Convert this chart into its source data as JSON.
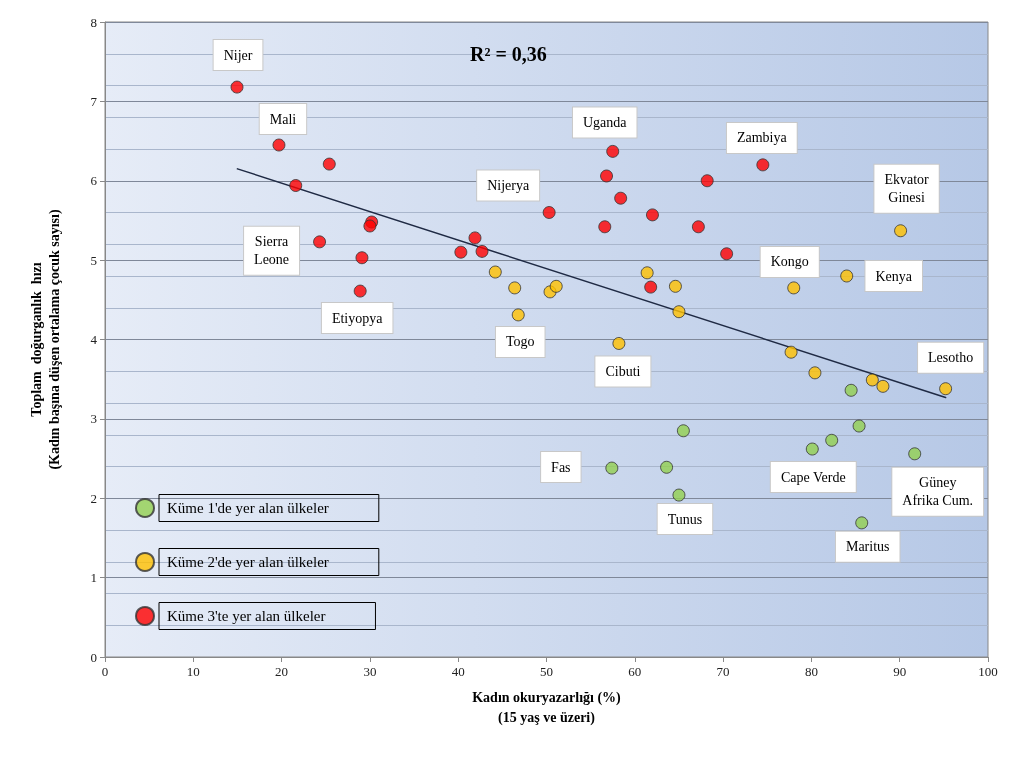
{
  "chart_data": {
    "type": "scatter",
    "xlabel": "Kadın okuryazarlığı (%)\n(15 yaş ve üzeri)",
    "ylabel": "Toplam  doğurganlık  hızı\n(Kadın başına düşen ortalama çocuk sayısı)",
    "xlim": [
      0,
      100
    ],
    "xticks": [
      0,
      10,
      20,
      30,
      40,
      50,
      60,
      70,
      80,
      90,
      100
    ],
    "ylim": [
      0,
      8
    ],
    "yticks": [
      0,
      1,
      2,
      3,
      4,
      5,
      6,
      7,
      8
    ],
    "grid": "y",
    "legend": "bottom left",
    "marker": "circle",
    "series": [
      {
        "name": "Küme 1'de yer alan ülkeler",
        "color": "#92d050",
        "x": [
          65.5,
          57.4,
          63.6,
          65.0,
          84.5,
          85.4,
          82.3,
          80.1,
          91.7,
          85.7
        ],
        "values": [
          2.85,
          2.38,
          2.39,
          2.04,
          3.36,
          2.91,
          2.73,
          2.62,
          2.56,
          1.69
        ]
      },
      {
        "name": "Küme 2'de yer alan ülkeler",
        "color": "#ffc000",
        "x": [
          44.2,
          46.4,
          46.8,
          50.4,
          51.1,
          61.4,
          64.6,
          65.0,
          58.2,
          90.1,
          84.0,
          78.0,
          77.7,
          80.4,
          86.9,
          88.1,
          95.2
        ],
        "values": [
          4.85,
          4.65,
          4.31,
          4.6,
          4.67,
          4.84,
          4.67,
          4.35,
          3.95,
          5.37,
          4.8,
          4.65,
          3.84,
          3.58,
          3.49,
          3.41,
          3.38
        ]
      },
      {
        "name": "Küme 3'te yer alan ülkeler",
        "color": "#ff0000",
        "x": [
          14.95,
          19.7,
          25.4,
          21.6,
          30.2,
          30.0,
          24.3,
          29.1,
          28.9,
          41.9,
          40.3,
          42.7,
          50.3,
          57.5,
          56.8,
          58.4,
          56.6,
          62.0,
          61.8,
          68.2,
          67.2,
          70.4,
          74.5
        ],
        "values": [
          7.18,
          6.45,
          6.21,
          5.94,
          5.48,
          5.43,
          5.23,
          5.03,
          4.61,
          5.28,
          5.1,
          5.11,
          5.6,
          6.37,
          6.06,
          5.78,
          5.42,
          5.57,
          4.66,
          6.0,
          5.42,
          5.08,
          6.2
        ]
      },
      {
        "type": "line",
        "color": "#1f2a44",
        "marker": "none",
        "x": [
          15,
          95.2
        ],
        "values": [
          6.15,
          3.27
        ]
      }
    ],
    "annotations": [
      "R² = 0,36",
      {
        "text": "Nijer",
        "x": 14.95,
        "y": 7.18
      },
      {
        "text": "Mali",
        "x": 19.7,
        "y": 6.45
      },
      {
        "text": "Sierra\nLeone",
        "x": 24.3,
        "y": 5.23
      },
      {
        "text": "Etiyopya",
        "x": 28.9,
        "y": 4.61
      },
      {
        "text": "Nijerya",
        "x": 50.3,
        "y": 5.6
      },
      {
        "text": "Uganda",
        "x": 57.5,
        "y": 6.37
      },
      {
        "text": "Togo",
        "x": 46.8,
        "y": 4.31
      },
      {
        "text": "Cibuti",
        "x": 58.2,
        "y": 3.95
      },
      {
        "text": "Zambiya",
        "x": 74.5,
        "y": 6.2
      },
      {
        "text": "Ekvator\nGinesi",
        "x": 90.1,
        "y": 5.37
      },
      {
        "text": "Kongo",
        "x": 78.0,
        "y": 4.65
      },
      {
        "text": "Kenya",
        "x": 84.0,
        "y": 4.8
      },
      {
        "text": "Lesotho",
        "x": 95.2,
        "y": 3.38
      },
      {
        "text": "Cape Verde",
        "x": 80.1,
        "y": 2.62
      },
      {
        "text": "Güney\nAfrika Cum.",
        "x": 91.7,
        "y": 2.56
      },
      {
        "text": "Maritus",
        "x": 85.7,
        "y": 1.69
      },
      {
        "text": "Fas",
        "x": 57.4,
        "y": 2.38
      },
      {
        "text": "Tunus",
        "x": 65.0,
        "y": 2.04
      }
    ]
  }
}
